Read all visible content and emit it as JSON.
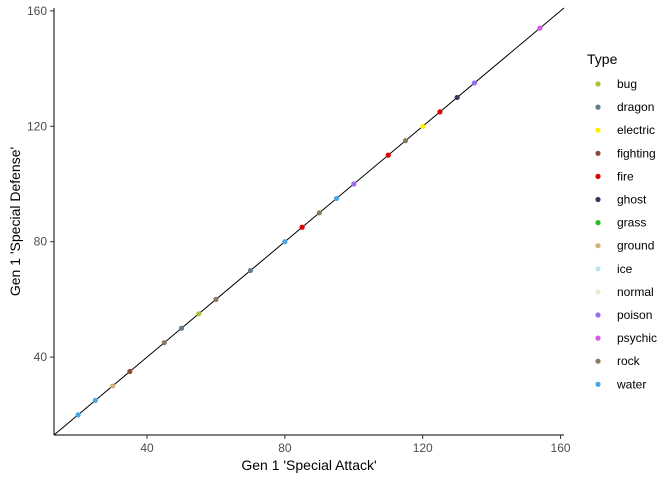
{
  "chart_data": {
    "type": "scatter",
    "xlabel": "Gen 1 'Special Attack'",
    "ylabel": "Gen 1 'Special Defense'",
    "xlim": [
      13,
      161
    ],
    "ylim": [
      13,
      161
    ],
    "x_ticks": [
      40,
      80,
      120,
      160
    ],
    "y_ticks": [
      40,
      80,
      120,
      160
    ],
    "grid": false,
    "reference_line": "y = x",
    "legend_title": "Type",
    "legend_position": "right",
    "series": [
      {
        "name": "bug",
        "color": "#a6c23a",
        "points": [
          [
            55,
            55
          ]
        ]
      },
      {
        "name": "dragon",
        "color": "#5f7f8f",
        "points": [
          [
            50,
            50
          ],
          [
            70,
            70
          ]
        ]
      },
      {
        "name": "electric",
        "color": "#ffef00",
        "points": [
          [
            120,
            120
          ]
        ]
      },
      {
        "name": "fighting",
        "color": "#8b4a35",
        "points": [
          [
            35,
            35
          ]
        ]
      },
      {
        "name": "fire",
        "color": "#e00000",
        "points": [
          [
            85,
            85
          ],
          [
            110,
            110
          ],
          [
            125,
            125
          ]
        ]
      },
      {
        "name": "ghost",
        "color": "#3b3563",
        "points": [
          [
            130,
            130
          ]
        ]
      },
      {
        "name": "grass",
        "color": "#20c020",
        "points": []
      },
      {
        "name": "ground",
        "color": "#d2b07a",
        "points": [
          [
            30,
            30
          ]
        ]
      },
      {
        "name": "ice",
        "color": "#bfe3f2",
        "points": []
      },
      {
        "name": "normal",
        "color": "#ede8cf",
        "points": []
      },
      {
        "name": "poison",
        "color": "#9a6cf0",
        "points": [
          [
            100,
            100
          ],
          [
            135,
            135
          ]
        ]
      },
      {
        "name": "psychic",
        "color": "#d659e3",
        "points": [
          [
            154,
            154
          ]
        ]
      },
      {
        "name": "rock",
        "color": "#8a7a5c",
        "points": [
          [
            45,
            45
          ],
          [
            60,
            60
          ],
          [
            90,
            90
          ],
          [
            115,
            115
          ]
        ]
      },
      {
        "name": "water",
        "color": "#4aa7e4",
        "points": [
          [
            20,
            20
          ],
          [
            25,
            25
          ],
          [
            80,
            80
          ],
          [
            95,
            95
          ]
        ]
      }
    ]
  }
}
